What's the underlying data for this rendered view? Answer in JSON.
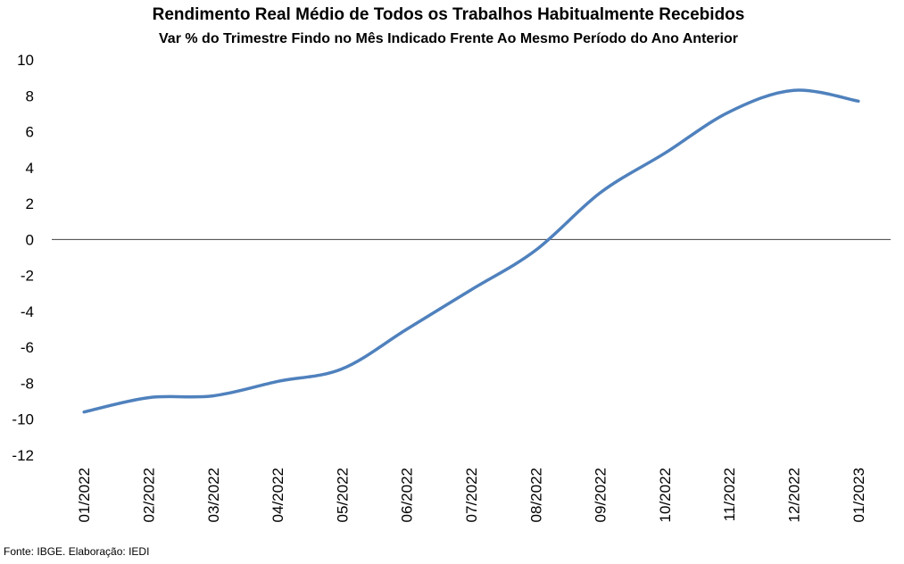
{
  "chart_data": {
    "type": "line",
    "title": "Rendimento Real Médio de Todos os Trabalhos Habitualmente Recebidos",
    "subtitle": "Var % do Trimestre Findo no Mês Indicado Frente Ao Mesmo Período do Ano Anterior",
    "xlabel": "",
    "ylabel": "",
    "categories": [
      "01/2022",
      "02/2022",
      "03/2022",
      "04/2022",
      "05/2022",
      "06/2022",
      "07/2022",
      "08/2022",
      "09/2022",
      "10/2022",
      "11/2022",
      "12/2022",
      "01/2023"
    ],
    "series": [
      {
        "values": [
          -9.6,
          -8.8,
          -8.7,
          -7.9,
          -7.2,
          -5.0,
          -2.8,
          -0.6,
          2.6,
          4.8,
          7.1,
          8.3,
          7.7
        ],
        "color": "#4f81bd"
      }
    ],
    "ylim": [
      -12,
      10
    ],
    "yticks": [
      10,
      8,
      6,
      4,
      2,
      0,
      -2,
      -4,
      -6,
      -8,
      -10,
      -12
    ],
    "zero_line": true,
    "grid": false,
    "legend": "none",
    "source": "Fonte: IBGE. Elaboração: IEDI"
  }
}
